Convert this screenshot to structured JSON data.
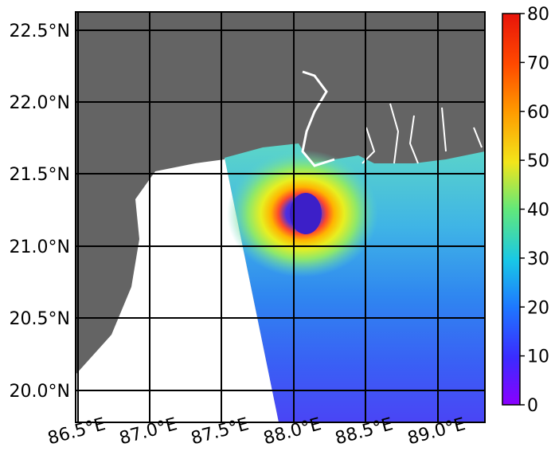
{
  "map": {
    "lat_labels": [
      "22.5°N",
      "22.0°N",
      "21.5°N",
      "21.0°N",
      "20.5°N",
      "20.0°N"
    ],
    "lon_labels": [
      "86.5°E",
      "87.0°E",
      "87.5°E",
      "88.0°E",
      "88.5°E",
      "89.0°E"
    ],
    "colors": {
      "land": "#646464",
      "no_data": "#ffffff",
      "grid": "#000000"
    }
  },
  "colorbar": {
    "ticks": [
      "0",
      "10",
      "20",
      "30",
      "40",
      "50",
      "60",
      "70",
      "80"
    ],
    "min": 0,
    "max": 80
  }
}
